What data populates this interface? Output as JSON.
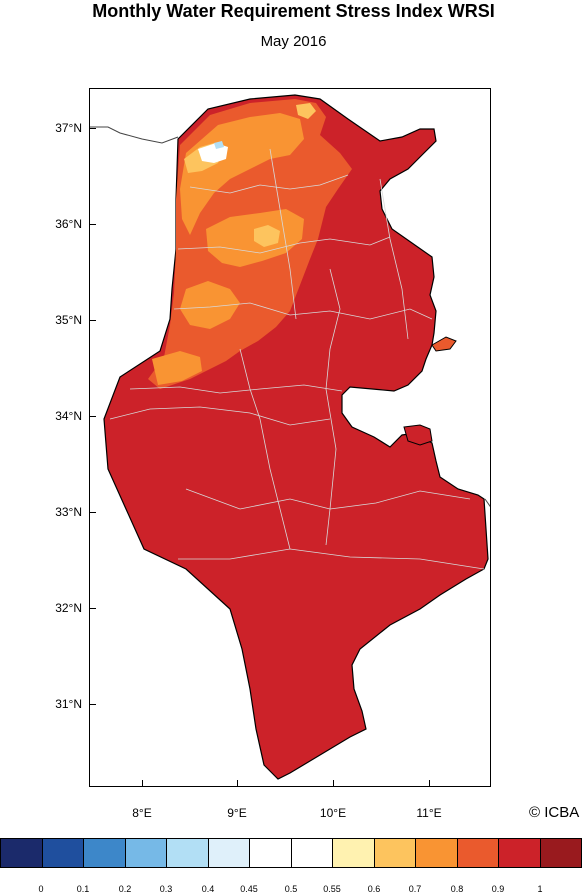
{
  "title": "Monthly Water Requirement Stress Index WRSI",
  "subtitle": "May 2016",
  "credit": "© ICBA",
  "map": {
    "lat_labels": [
      "37°N",
      "36°N",
      "35°N",
      "34°N",
      "33°N",
      "32°N",
      "31°N"
    ],
    "lon_labels": [
      "8°E",
      "9°E",
      "10°E",
      "11°E"
    ],
    "dominant_class_color": "#cc2229",
    "region": "Tunisia"
  },
  "legend": {
    "colors": [
      "#1b2a6b",
      "#1f4f9e",
      "#3d87c9",
      "#76b9e7",
      "#b2dff5",
      "#dff0fa",
      "#ffffff",
      "#ffffff",
      "#fff2b0",
      "#fdc45e",
      "#f99433",
      "#ea5a2d",
      "#cc2229",
      "#991a1e"
    ],
    "labels": [
      "0",
      "0.1",
      "0.2",
      "0.3",
      "0.4",
      "0.45",
      "0.5",
      "0.55",
      "0.6",
      "0.7",
      "0.8",
      "0.9",
      "1"
    ]
  }
}
